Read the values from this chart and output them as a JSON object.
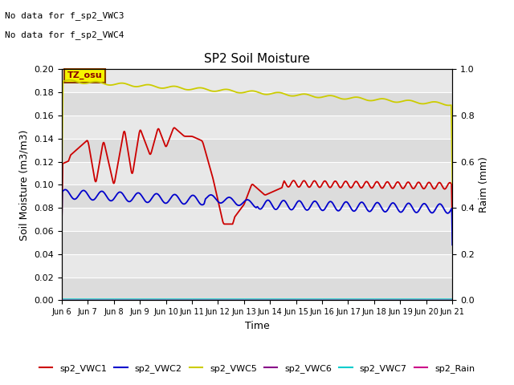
{
  "title": "SP2 Soil Moisture",
  "xlabel": "Time",
  "ylabel_left": "Soil Moisture (m3/m3)",
  "ylabel_right": "Raim (mm)",
  "note1": "No data for f_sp2_VWC3",
  "note2": "No data for f_sp2_VWC4",
  "tz_label": "TZ_osu",
  "ylim_left": [
    0.0,
    0.2
  ],
  "ylim_right": [
    0.0,
    1.0
  ],
  "colors": {
    "vwc1": "#cc0000",
    "vwc2": "#0000cc",
    "vwc5": "#cccc00",
    "vwc6": "#880088",
    "vwc7": "#00cccc",
    "rain": "#cc0088"
  },
  "bg_bands": [
    "#dcdcdc",
    "#e8e8e8"
  ],
  "x_tick_labels": [
    "Jun 6",
    "Jun 7",
    "Jun 8",
    "Jun 9",
    "Jun 10",
    "Jun 11",
    "Jun 12",
    "Jun 13",
    "Jun 14",
    "Jun 15",
    "Jun 16",
    "Jun 17",
    "Jun 18",
    "Jun 19",
    "Jun 20",
    "Jun 21"
  ],
  "x_tick_positions": [
    0,
    1,
    2,
    3,
    4,
    5,
    6,
    7,
    8,
    9,
    10,
    11,
    12,
    13,
    14,
    15
  ],
  "figsize": [
    6.4,
    4.8
  ],
  "dpi": 100
}
